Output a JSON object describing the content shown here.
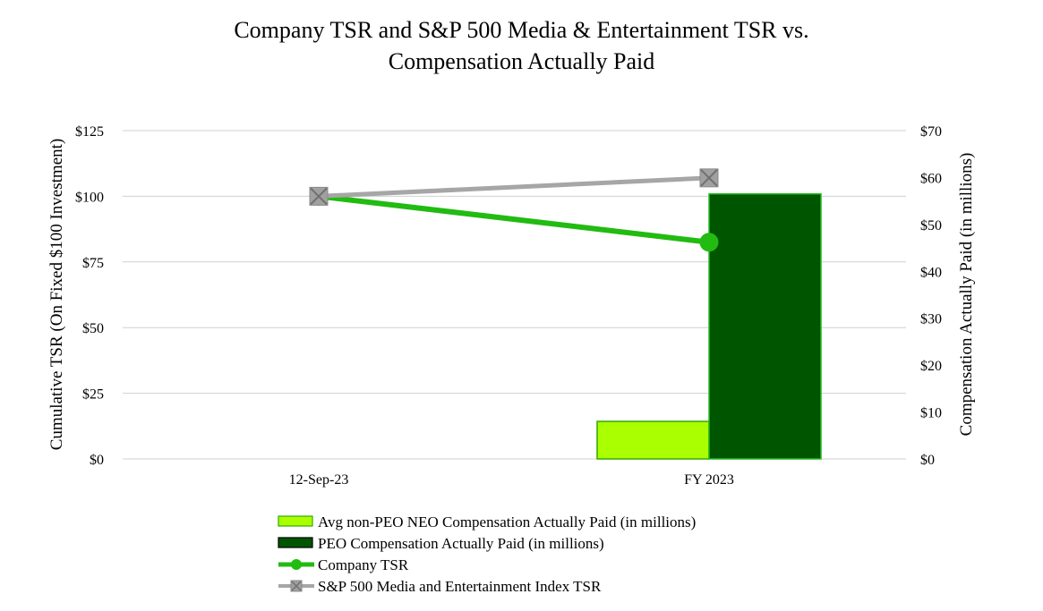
{
  "chart_data": {
    "type": "bar+line",
    "title": [
      "Company  TSR and S&P 500 Media & Entertainment TSR vs.",
      "Compensation Actually Paid"
    ],
    "categories": [
      "12-Sep-23",
      "FY 2023"
    ],
    "left_axis": {
      "label": "Cumulative TSR (On Fixed $100 Investment)",
      "min": 0,
      "max": 125,
      "step": 25,
      "ticks": [
        "$0",
        "$25",
        "$50",
        "$75",
        "$100",
        "$125"
      ]
    },
    "right_axis": {
      "label": "Compensation Actually Paid (in millions)",
      "min": 0,
      "max": 70,
      "step": 10,
      "ticks": [
        "$0",
        "$10",
        "$20",
        "$30",
        "$40",
        "$50",
        "$60",
        "$70"
      ]
    },
    "series": [
      {
        "name": "Avg non-PEO NEO Compensation Actually Paid (in millions)",
        "type": "bar",
        "axis": "right",
        "values": [
          null,
          8
        ],
        "color": "#aaff00",
        "border": "#33aa00"
      },
      {
        "name": "PEO Compensation Actually Paid (in millions)",
        "type": "bar",
        "axis": "right",
        "values": [
          null,
          56.5
        ],
        "color": "#005500",
        "border": "#22bb22"
      },
      {
        "name": "Company TSR",
        "type": "line",
        "axis": "left",
        "marker": "circle",
        "values": [
          100,
          82.5
        ],
        "color": "#22bb11"
      },
      {
        "name": "S&P 500 Media and Entertainment Index TSR",
        "type": "line",
        "axis": "left",
        "marker": "x-square",
        "values": [
          100,
          107
        ],
        "color": "#a6a6a6"
      }
    ],
    "grid": true,
    "legend": "bottom"
  }
}
